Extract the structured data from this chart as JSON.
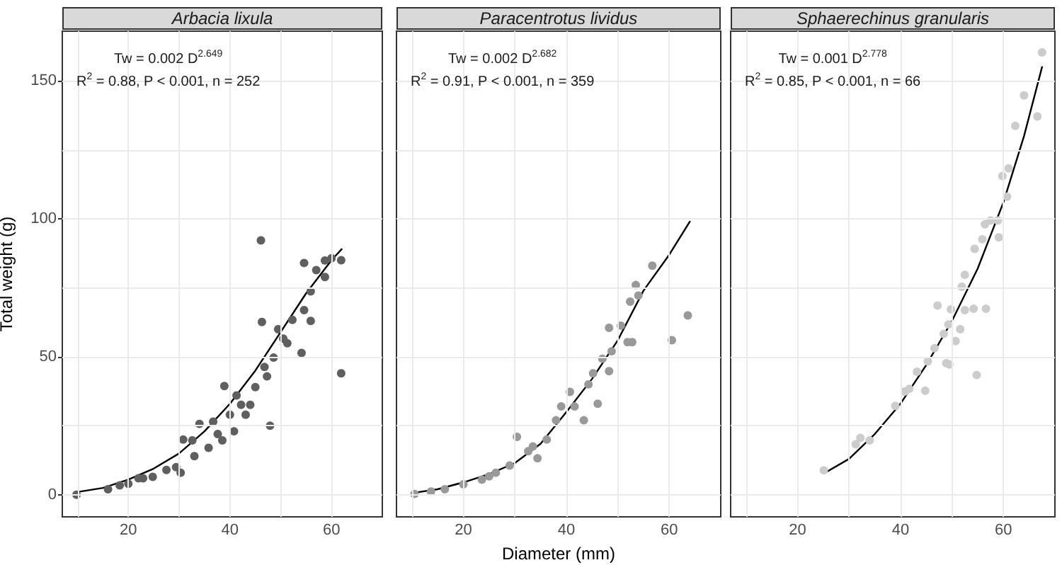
{
  "chart_data": [
    {
      "type": "scatter",
      "title": "Arbacia lixula",
      "ylabel": "Total weight (g)",
      "annotations": [
        "Tw = 0.002 D$^{2.649}$",
        "R$^{2}$ = 0.88, P < 0.001, n = 252"
      ],
      "xlim": [
        7,
        70
      ],
      "ylim": [
        -8,
        168
      ],
      "xticks": [
        {
          "value": 10,
          "label": null
        },
        20,
        {
          "value": 30,
          "label": null
        },
        40,
        {
          "value": 50,
          "label": null
        },
        60
      ],
      "yticks": [
        0,
        {
          "value": 25,
          "label": null
        },
        50,
        {
          "value": 75,
          "label": null
        },
        100,
        {
          "value": 125,
          "label": null
        },
        150
      ],
      "grid": true,
      "marker": "circle",
      "series": [
        {
          "color": "#5f5f5f",
          "x": [
            9.8,
            16,
            18.3,
            20,
            22,
            22.9,
            24.8,
            27.5,
            29.4,
            30.3,
            30.8,
            32.6,
            33,
            34,
            35.8,
            36.7,
            37.6,
            38.5,
            38.9,
            40,
            40.8,
            41.3,
            42.2,
            43.1,
            44,
            45,
            46.3,
            46.1,
            46.8,
            47.3,
            47.9,
            48.6,
            49.5,
            50.5,
            51.3,
            52.3,
            54.1,
            54.6,
            54.6,
            55.9,
            55.9,
            57,
            58.7,
            58.7,
            60,
            61.9,
            61.9
          ],
          "values": [
            0,
            2,
            3.4,
            4,
            6,
            6,
            6.5,
            9,
            10,
            8,
            20,
            19.7,
            14,
            25.7,
            17,
            26.5,
            22,
            19.7,
            39.4,
            29,
            23,
            36,
            32.6,
            29,
            32.6,
            39,
            62.6,
            92.2,
            46.3,
            42.9,
            25,
            49.7,
            60,
            56.6,
            54.9,
            63.4,
            51.4,
            66.9,
            84,
            73.7,
            63,
            81.4,
            84.9,
            78.9,
            85.7,
            85,
            44
          ]
        },
        {
          "type": "line",
          "color": "#000000",
          "marker": "none",
          "x": [
            10,
            15,
            20,
            25,
            30,
            35,
            40,
            45,
            50,
            55,
            60,
            62
          ],
          "values": [
            1,
            2.5,
            5.5,
            9.5,
            15,
            23,
            33,
            45,
            59,
            73,
            85,
            89
          ]
        }
      ]
    },
    {
      "type": "scatter",
      "title": "Paracentrotus lividus",
      "xlabel": "Diameter (mm)",
      "annotations": [
        "Tw = 0.002 D$^{2.682}$",
        "R$^{2}$ = 0.91, P < 0.001, n = 359"
      ],
      "xlim": [
        7,
        70
      ],
      "ylim": [
        -8,
        168
      ],
      "xticks": [
        {
          "value": 10,
          "label": null
        },
        20,
        {
          "value": 30,
          "label": null
        },
        40,
        {
          "value": 50,
          "label": null
        },
        60
      ],
      "yticks": [
        0,
        {
          "value": 25,
          "label": null
        },
        50,
        {
          "value": 75,
          "label": null
        },
        100,
        {
          "value": 125,
          "label": null
        },
        150
      ],
      "grid": true,
      "tick_labels": "x",
      "marker": "circle",
      "series": [
        {
          "color": "#999999",
          "x": [
            10.5,
            13.7,
            16.4,
            20,
            23.6,
            25,
            26.3,
            29,
            30.4,
            32.6,
            33.5,
            34.4,
            36.2,
            38,
            39,
            40.7,
            41.6,
            43.4,
            44.3,
            45.2,
            46.1,
            47,
            48.3,
            48.3,
            48.8,
            50.6,
            51.9,
            52.8,
            52.4,
            53.5,
            54,
            56.7,
            60.5,
            63.6
          ],
          "values": [
            0.3,
            1.2,
            2,
            3.8,
            5.5,
            6.7,
            8,
            10.6,
            21,
            15.8,
            17.5,
            13.2,
            20,
            27,
            32,
            37.3,
            32,
            27,
            40,
            44,
            33,
            49.3,
            44.8,
            60.5,
            52,
            61.3,
            55.3,
            55.3,
            70,
            76,
            72.2,
            83,
            56,
            65
          ]
        },
        {
          "type": "line",
          "color": "#000000",
          "marker": "none",
          "x": [
            10.3,
            15,
            20,
            25,
            30,
            35,
            40,
            45,
            50,
            55,
            60,
            64
          ],
          "values": [
            0.7,
            2,
            4.5,
            7.5,
            11.5,
            18.5,
            30,
            42,
            56,
            74,
            87,
            99
          ]
        }
      ]
    },
    {
      "type": "scatter",
      "title": "Sphaerechinus granularis",
      "annotations": [
        "Tw = 0.001 D$^{2.778}$",
        "R$^{2}$ = 0.85, P < 0.001, n = 66"
      ],
      "xlim": [
        7,
        70
      ],
      "ylim": [
        -8,
        168
      ],
      "xticks": [
        {
          "value": 10,
          "label": null
        },
        20,
        {
          "value": 30,
          "label": null
        },
        40,
        {
          "value": 50,
          "label": null
        },
        60
      ],
      "yticks": [
        0,
        {
          "value": 25,
          "label": null
        },
        50,
        {
          "value": 75,
          "label": null
        },
        100,
        {
          "value": 125,
          "label": null
        },
        150
      ],
      "grid": true,
      "tick_labels": "x",
      "marker": "circle",
      "series": [
        {
          "color": "#cccccc",
          "x": [
            25.1,
            31.3,
            32.2,
            34,
            39,
            40.8,
            41.7,
            43.2,
            44.8,
            45.3,
            46.6,
            47.2,
            48.4,
            48.9,
            49.5,
            49.3,
            49.8,
            50.7,
            51.6,
            51.9,
            52.5,
            52.5,
            54.2,
            54.8,
            54.4,
            55.9,
            56.6,
            56.4,
            57.5,
            59.1,
            58.9,
            59.8,
            61,
            60.7,
            62.3,
            64,
            66.6,
            67.5
          ],
          "values": [
            8.9,
            18.3,
            20.6,
            19.7,
            32.2,
            37.4,
            38.4,
            44.6,
            37.7,
            48.3,
            53.1,
            68.6,
            58.3,
            47.7,
            47.2,
            61.7,
            67.2,
            55.7,
            60,
            75.4,
            79.7,
            66.9,
            67.4,
            43.4,
            89.1,
            92.6,
            67.4,
            98,
            99.4,
            93.3,
            99.4,
            115.5,
            118.3,
            108,
            133.7,
            144.7,
            137.1,
            160.3
          ]
        },
        {
          "type": "line",
          "color": "#000000",
          "marker": "none",
          "x": [
            25.1,
            30,
            35,
            40,
            45,
            50,
            55,
            60,
            64,
            67.5
          ],
          "values": [
            7.7,
            13,
            22,
            33,
            47,
            63,
            82,
            106,
            130,
            155
          ]
        }
      ]
    }
  ]
}
